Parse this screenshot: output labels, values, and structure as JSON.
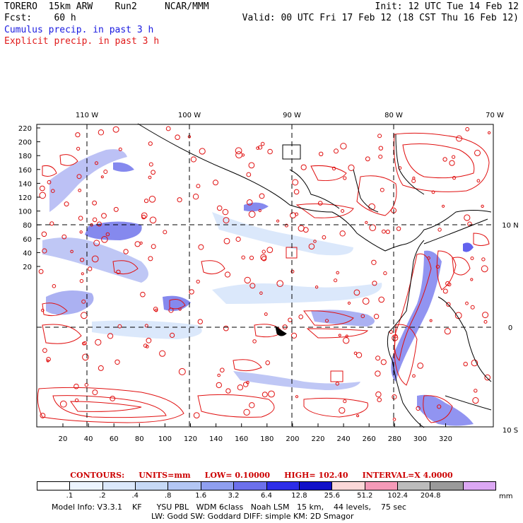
{
  "header": {
    "line1_left": "TORERO  15km ARW    Run2     NCAR/MMM",
    "line1_right": "Init: 12 UTC Tue 14 Feb 12",
    "line2_left": "Fcst:    60 h",
    "line2_right": "Valid: 00 UTC Fri 17 Feb 12 (18 CST Thu 16 Feb 12)"
  },
  "legend": {
    "cumulus": "Cumulus precip. in past 3 h",
    "explicit": "Explicit precip. in past 3 h"
  },
  "map": {
    "top_labels": [
      "110 W",
      "100 W",
      "90 W",
      "80 W",
      "70 W"
    ],
    "right_labels": [
      "10 N",
      "0",
      "10 S"
    ],
    "left_ticks": [
      "220",
      "200",
      "180",
      "160",
      "140",
      "120",
      "100",
      "80",
      "60",
      "40",
      "20"
    ],
    "bottom_ticks": [
      "20",
      "40",
      "60",
      "80",
      "100",
      "120",
      "140",
      "160",
      "180",
      "200",
      "220",
      "240",
      "260",
      "280",
      "300",
      "320"
    ],
    "colors": {
      "cumulus": "#3a3ae0",
      "explicit": "#e01010",
      "coast": "#000000"
    }
  },
  "contours": {
    "label": "CONTOURS:",
    "units": "UNITS=mm",
    "low": "LOW= 0.10000",
    "high": "HIGH=  102.40",
    "interval": "INTERVAL=X  4.0000"
  },
  "colorbar": {
    "colors": [
      "#ffffff",
      "#ecf4ff",
      "#dbe8fb",
      "#c6d9f6",
      "#b3c6f4",
      "#8f9ff0",
      "#6c70ec",
      "#2d2de8",
      "#1010c8",
      "#fcd8d8",
      "#f59ab8",
      "#bcbcbc",
      "#9a9a9a",
      "#dca8f4"
    ],
    "labels": [
      ".1",
      ".2",
      ".4",
      ".8",
      "1.6",
      "3.2",
      "6.4",
      "12.8",
      "25.6",
      "51.2",
      "102.4",
      "204.8"
    ],
    "unit": "mm"
  },
  "model_info": {
    "line1": "Model Info: V3.3.1    KF      YSU PBL   WDM 6class   Noah LSM   15 km,    44 levels,    75 sec",
    "line2": "LW: Godd SW: Goddard DIFF: simple KM: 2D Smagor"
  }
}
